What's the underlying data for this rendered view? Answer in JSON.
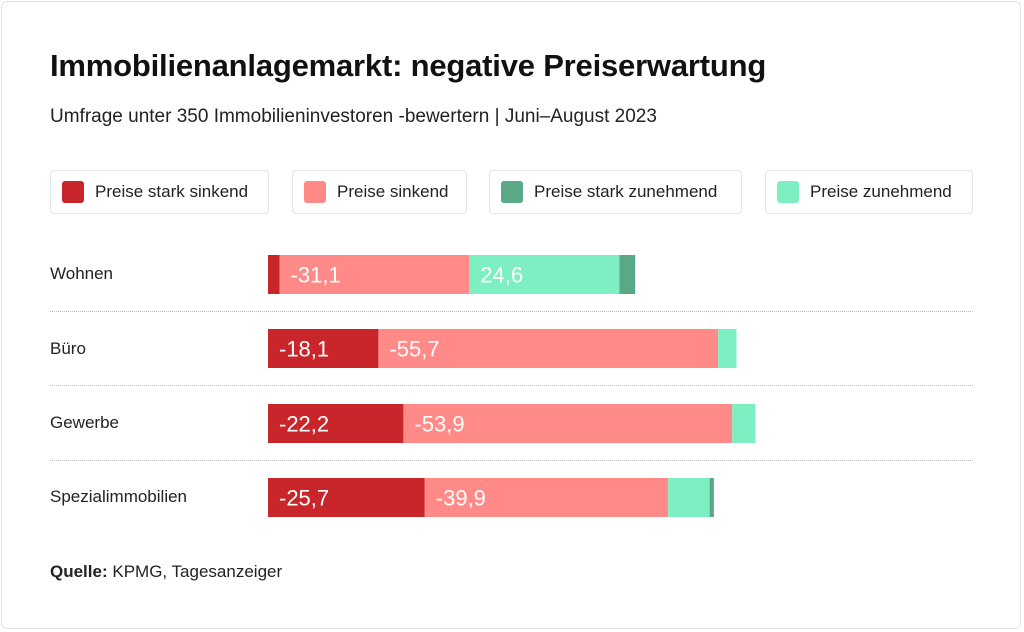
{
  "title": "Immobilienanlagemarkt: negative Preiserwartung",
  "subtitle": "Umfrage unter 350 Immobilieninvestoren -bewertern | Juni–August 2023",
  "source": {
    "label": "Quelle:",
    "text": "KPMG, Tagesanzeiger"
  },
  "colors": {
    "strong_down": "#c8262a",
    "down": "#ff8a87",
    "strong_up": "#5aa887",
    "up": "#7eefc2"
  },
  "chart_data": {
    "type": "bar",
    "orientation": "horizontal",
    "stacked": true,
    "categories": [
      "Wohnen",
      "Büro",
      "Gewerbe",
      "Spezialimmobilien"
    ],
    "series": [
      {
        "name": "Preise stark sinkend",
        "key": "strong_down",
        "values": [
          -1.9,
          -18.1,
          -22.2,
          -25.7
        ],
        "labels": [
          "",
          "-18,1",
          "-22,2",
          "-25,7"
        ]
      },
      {
        "name": "Preise sinkend",
        "key": "down",
        "values": [
          -31.1,
          -55.7,
          -53.9,
          -39.9
        ],
        "labels": [
          "-31,1",
          "-55,7",
          "-53,9",
          "-39,9"
        ]
      },
      {
        "name": "Preise zunehmend",
        "key": "up",
        "values": [
          24.6,
          3.0,
          3.8,
          6.8
        ],
        "labels": [
          "24,6",
          "",
          "",
          ""
        ]
      },
      {
        "name": "Preise stark zunehmend",
        "key": "strong_up",
        "values": [
          2.6,
          0,
          0,
          0.7
        ],
        "labels": [
          "",
          "",
          "",
          ""
        ]
      }
    ],
    "legend": [
      {
        "name": "Preise stark sinkend",
        "key": "strong_down"
      },
      {
        "name": "Preise sinkend",
        "key": "down"
      },
      {
        "name": "Preise stark zunehmend",
        "key": "strong_up"
      },
      {
        "name": "Preise zunehmend",
        "key": "up"
      }
    ],
    "legend_position": "top",
    "grid": false
  }
}
